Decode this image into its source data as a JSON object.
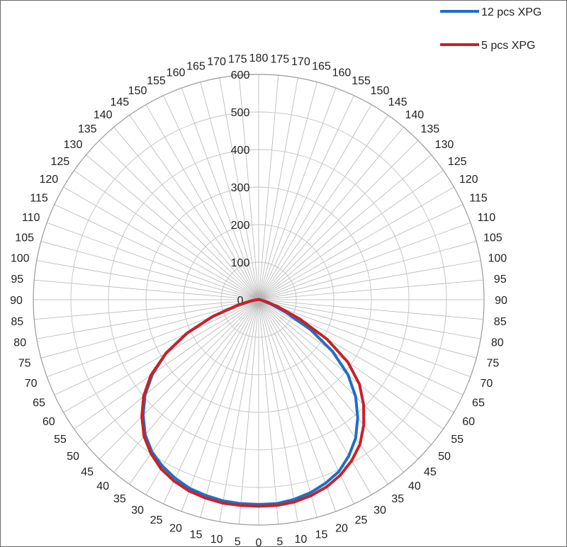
{
  "chart_data": {
    "type": "polar-line",
    "angle_ticks": [
      "0",
      "5",
      "10",
      "15",
      "20",
      "25",
      "30",
      "35",
      "40",
      "45",
      "50",
      "55",
      "60",
      "65",
      "70",
      "75",
      "80",
      "85",
      "90",
      "95",
      "100",
      "105",
      "110",
      "115",
      "120",
      "125",
      "130",
      "135",
      "140",
      "145",
      "150",
      "155",
      "160",
      "165",
      "170",
      "175",
      "180",
      "175",
      "170",
      "165",
      "160",
      "155",
      "150",
      "145",
      "140",
      "135",
      "130",
      "125",
      "120",
      "115",
      "110",
      "105",
      "100",
      "95",
      "90",
      "85",
      "80",
      "75",
      "70",
      "65",
      "60",
      "55",
      "50",
      "45",
      "40",
      "35",
      "30",
      "25",
      "20",
      "15",
      "10",
      "5"
    ],
    "radial_ticks": [
      0,
      100,
      200,
      300,
      400,
      500,
      600
    ],
    "rlim": [
      0,
      600
    ],
    "grid": true,
    "legend": "top-right",
    "angle_step": 5,
    "series": [
      {
        "name": "12 pcs XPG",
        "color": "#1f6fc5",
        "values": [
          545,
          545,
          540,
          532,
          520,
          505,
          480,
          450,
          410,
          365,
          310,
          240,
          160,
          80,
          35,
          14,
          7,
          4,
          3,
          2,
          1,
          1,
          1,
          1,
          1,
          1,
          1,
          1,
          1,
          1,
          1,
          1,
          1,
          1,
          1,
          1,
          1,
          1,
          1,
          1,
          1,
          1,
          1,
          1,
          1,
          1,
          1,
          1,
          1,
          1,
          1,
          1,
          2,
          3,
          5,
          10,
          25,
          60,
          130,
          210,
          285,
          345,
          395,
          435,
          470,
          495,
          512,
          525,
          535,
          540,
          544,
          545
        ]
      },
      {
        "name": "5 pcs XPG",
        "color": "#cc2027",
        "values": [
          550,
          550,
          547,
          540,
          530,
          515,
          495,
          470,
          435,
          395,
          350,
          290,
          210,
          120,
          55,
          22,
          10,
          5,
          3,
          2,
          1,
          1,
          1,
          1,
          1,
          1,
          1,
          1,
          1,
          1,
          1,
          1,
          1,
          1,
          1,
          1,
          1,
          1,
          1,
          1,
          1,
          1,
          1,
          1,
          1,
          1,
          1,
          1,
          1,
          1,
          1,
          1,
          2,
          3,
          5,
          10,
          25,
          60,
          130,
          210,
          285,
          350,
          400,
          440,
          475,
          500,
          520,
          533,
          542,
          547,
          550,
          550
        ]
      }
    ]
  }
}
